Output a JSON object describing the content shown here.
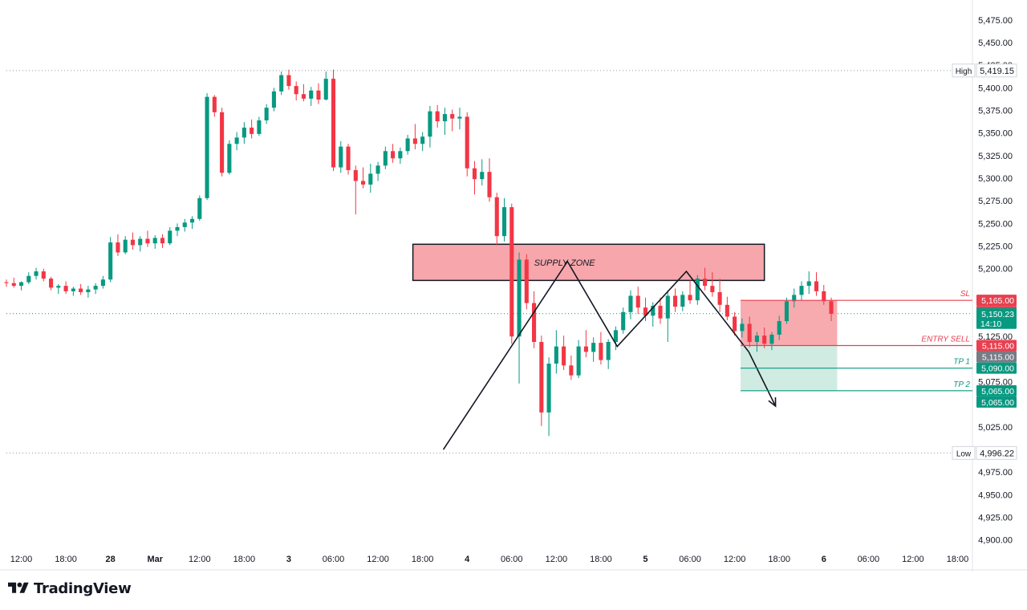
{
  "chart_data": {
    "type": "candlestick",
    "instrument_timeframe_hours": 1,
    "y_axis": {
      "ticks": [
        "5,475.00",
        "5,450.00",
        "5,425.00",
        "5,400.00",
        "5,375.00",
        "5,350.00",
        "5,325.00",
        "5,300.00",
        "5,275.00",
        "5,250.00",
        "5,225.00",
        "5,200.00",
        "5,125.00",
        "5,075.00",
        "5,025.00",
        "4,975.00",
        "4,950.00",
        "4,925.00",
        "4,900.00"
      ],
      "tick_values": [
        5475,
        5450,
        5425,
        5400,
        5375,
        5350,
        5325,
        5300,
        5275,
        5250,
        5225,
        5200,
        5125,
        5075,
        5025,
        4975,
        4950,
        4925,
        4900
      ],
      "ylim": [
        4890,
        5490
      ]
    },
    "x_axis": {
      "ticks": [
        "12:00",
        "18:00",
        "28",
        "Mar",
        "12:00",
        "18:00",
        "3",
        "06:00",
        "12:00",
        "18:00",
        "4",
        "06:00",
        "12:00",
        "18:00",
        "5",
        "06:00",
        "12:00",
        "18:00",
        "6",
        "06:00",
        "12:00",
        "18:00"
      ],
      "tick_hours": [
        0,
        6,
        12,
        18,
        24,
        30,
        36,
        42,
        48,
        54,
        60,
        66,
        72,
        78,
        84,
        90,
        96,
        102,
        108,
        114,
        120,
        126
      ],
      "bold_ticks": [
        2,
        3,
        6,
        10,
        14,
        18
      ],
      "xlim": [
        -2,
        128
      ]
    },
    "candles_start_hour": -2,
    "candles": [
      [
        5185,
        5188,
        5180,
        5184
      ],
      [
        5184,
        5190,
        5179,
        5181
      ],
      [
        5181,
        5186,
        5176,
        5185
      ],
      [
        5185,
        5196,
        5183,
        5192
      ],
      [
        5192,
        5201,
        5188,
        5197
      ],
      [
        5197,
        5200,
        5186,
        5189
      ],
      [
        5189,
        5191,
        5176,
        5179
      ],
      [
        5179,
        5183,
        5172,
        5181
      ],
      [
        5181,
        5186,
        5172,
        5175
      ],
      [
        5175,
        5180,
        5170,
        5178
      ],
      [
        5178,
        5183,
        5171,
        5174
      ],
      [
        5174,
        5181,
        5168,
        5177
      ],
      [
        5177,
        5184,
        5172,
        5181
      ],
      [
        5181,
        5192,
        5178,
        5188
      ],
      [
        5188,
        5235,
        5185,
        5229
      ],
      [
        5229,
        5238,
        5214,
        5218
      ],
      [
        5218,
        5236,
        5216,
        5232
      ],
      [
        5232,
        5240,
        5221,
        5226
      ],
      [
        5226,
        5236,
        5219,
        5233
      ],
      [
        5233,
        5242,
        5224,
        5228
      ],
      [
        5228,
        5237,
        5222,
        5234
      ],
      [
        5234,
        5238,
        5223,
        5228
      ],
      [
        5228,
        5246,
        5226,
        5242
      ],
      [
        5242,
        5250,
        5236,
        5246
      ],
      [
        5246,
        5255,
        5241,
        5251
      ],
      [
        5251,
        5258,
        5244,
        5255
      ],
      [
        5255,
        5281,
        5253,
        5278
      ],
      [
        5278,
        5394,
        5276,
        5390
      ],
      [
        5390,
        5392,
        5368,
        5373
      ],
      [
        5373,
        5378,
        5302,
        5306
      ],
      [
        5306,
        5342,
        5304,
        5338
      ],
      [
        5338,
        5351,
        5331,
        5345
      ],
      [
        5345,
        5362,
        5338,
        5356
      ],
      [
        5356,
        5365,
        5344,
        5349
      ],
      [
        5349,
        5368,
        5347,
        5364
      ],
      [
        5364,
        5382,
        5360,
        5378
      ],
      [
        5378,
        5400,
        5374,
        5396
      ],
      [
        5396,
        5418,
        5392,
        5414
      ],
      [
        5414,
        5420,
        5398,
        5402
      ],
      [
        5402,
        5407,
        5386,
        5393
      ],
      [
        5393,
        5404,
        5385,
        5388
      ],
      [
        5388,
        5401,
        5380,
        5397
      ],
      [
        5397,
        5405,
        5382,
        5387
      ],
      [
        5387,
        5418,
        5386,
        5410
      ],
      [
        5410,
        5420,
        5308,
        5312
      ],
      [
        5312,
        5341,
        5306,
        5335
      ],
      [
        5335,
        5338,
        5304,
        5309
      ],
      [
        5309,
        5314,
        5260,
        5297
      ],
      [
        5297,
        5312,
        5289,
        5293
      ],
      [
        5293,
        5316,
        5284,
        5305
      ],
      [
        5305,
        5318,
        5297,
        5314
      ],
      [
        5314,
        5335,
        5310,
        5330
      ],
      [
        5330,
        5338,
        5317,
        5322
      ],
      [
        5322,
        5334,
        5316,
        5330
      ],
      [
        5330,
        5348,
        5326,
        5344
      ],
      [
        5344,
        5360,
        5332,
        5338
      ],
      [
        5338,
        5351,
        5330,
        5346
      ],
      [
        5346,
        5380,
        5334,
        5374
      ],
      [
        5374,
        5381,
        5356,
        5363
      ],
      [
        5363,
        5378,
        5348,
        5371
      ],
      [
        5371,
        5376,
        5352,
        5366
      ],
      [
        5366,
        5378,
        5354,
        5368
      ],
      [
        5368,
        5373,
        5302,
        5311
      ],
      [
        5311,
        5319,
        5282,
        5299
      ],
      [
        5299,
        5321,
        5292,
        5307
      ],
      [
        5307,
        5322,
        5274,
        5279
      ],
      [
        5279,
        5284,
        5226,
        5236
      ],
      [
        5236,
        5278,
        5230,
        5268
      ],
      [
        5268,
        5272,
        5117,
        5125
      ],
      [
        5125,
        5218,
        5073,
        5210
      ],
      [
        5210,
        5216,
        5155,
        5162
      ],
      [
        5162,
        5175,
        5112,
        5119
      ],
      [
        5119,
        5126,
        5026,
        5041
      ],
      [
        5041,
        5102,
        5015,
        5095
      ],
      [
        5095,
        5132,
        5084,
        5114
      ],
      [
        5114,
        5126,
        5088,
        5093
      ],
      [
        5093,
        5104,
        5077,
        5082
      ],
      [
        5082,
        5121,
        5079,
        5114
      ],
      [
        5114,
        5132,
        5102,
        5108
      ],
      [
        5108,
        5124,
        5097,
        5118
      ],
      [
        5118,
        5130,
        5094,
        5099
      ],
      [
        5099,
        5122,
        5089,
        5119
      ],
      [
        5119,
        5136,
        5110,
        5132
      ],
      [
        5132,
        5157,
        5128,
        5152
      ],
      [
        5152,
        5176,
        5144,
        5170
      ],
      [
        5170,
        5180,
        5150,
        5157
      ],
      [
        5157,
        5168,
        5142,
        5148
      ],
      [
        5148,
        5163,
        5136,
        5159
      ],
      [
        5159,
        5168,
        5139,
        5145
      ],
      [
        5145,
        5176,
        5119,
        5170
      ],
      [
        5170,
        5178,
        5152,
        5158
      ],
      [
        5158,
        5175,
        5153,
        5171
      ],
      [
        5171,
        5187,
        5161,
        5165
      ],
      [
        5165,
        5193,
        5160,
        5189
      ],
      [
        5189,
        5201,
        5176,
        5181
      ],
      [
        5181,
        5196,
        5169,
        5174
      ],
      [
        5174,
        5189,
        5152,
        5160
      ],
      [
        5160,
        5169,
        5143,
        5147
      ],
      [
        5147,
        5152,
        5126,
        5131
      ],
      [
        5131,
        5145,
        5124,
        5139
      ],
      [
        5139,
        5147,
        5113,
        5119
      ],
      [
        5119,
        5130,
        5108,
        5126
      ],
      [
        5126,
        5135,
        5112,
        5117
      ],
      [
        5117,
        5130,
        5110,
        5127
      ],
      [
        5127,
        5148,
        5121,
        5142
      ],
      [
        5142,
        5168,
        5139,
        5164
      ],
      [
        5164,
        5178,
        5157,
        5171
      ],
      [
        5171,
        5186,
        5165,
        5181
      ],
      [
        5181,
        5197,
        5172,
        5186
      ],
      [
        5186,
        5196,
        5170,
        5175
      ],
      [
        5175,
        5182,
        5160,
        5164
      ],
      [
        5164,
        5168,
        5142,
        5150
      ]
    ],
    "price_lines": [
      {
        "value": 5419.15,
        "label": "High",
        "price": "5,419.15",
        "style": "dotted"
      },
      {
        "value": 4996.22,
        "label": "Low",
        "price": "4,996.22",
        "style": "dotted"
      },
      {
        "value": 5150.23,
        "style": "dotted",
        "color": "#089981"
      }
    ],
    "annotations": {
      "supply_zone": {
        "label": "SUPPLY ZONE",
        "from_hour": 52.7,
        "to_hour": 100,
        "top": 5227,
        "bottom": 5187,
        "fill": "#f7a6ab"
      },
      "zigzag": [
        [
          56.8,
          5000
        ],
        [
          73.5,
          5208
        ],
        [
          80.2,
          5114
        ],
        [
          89.5,
          5197
        ],
        [
          97.9,
          5108
        ]
      ],
      "zigzag_start_note": "lines pass through these price/time anchors",
      "arrow_end": [
        101.5,
        5048
      ],
      "position": {
        "from_hour": 96.8,
        "to_hour": 109.8,
        "stop": 5165,
        "entry": 5115,
        "target": 5065,
        "loss_fill": "#f7a6ab",
        "profit_fill": "#cdeae0"
      },
      "levels": [
        {
          "label": "SL",
          "value": 5165,
          "price": "5,165.00",
          "color": "#e84050"
        },
        {
          "label": "ENTRY SELL",
          "value": 5115,
          "price": "5,115.00",
          "color": "#e84050"
        },
        {
          "label": "TP 1",
          "value": 5090,
          "price": "5,090.00",
          "color": "#089981"
        },
        {
          "label": "TP 2",
          "value": 5065,
          "price": "5,065.00",
          "color": "#089981"
        }
      ]
    },
    "axis_badges": [
      {
        "price": "5,165.00",
        "value": 5165,
        "bg": "#e84050"
      },
      {
        "price": "5,165.00",
        "value": 5165,
        "bg": "#e84050",
        "stack": 1
      },
      {
        "price": "5,150.23",
        "sub": "14:10",
        "value": 5150.23,
        "bg": "#089981"
      },
      {
        "price": "5,115.00",
        "value": 5115,
        "bg": "#e84050"
      },
      {
        "price": "5,115.00",
        "value": 5115,
        "bg": "#787b86",
        "stack": 1
      },
      {
        "price": "5,090.00",
        "value": 5090,
        "bg": "#089981"
      },
      {
        "price": "5,065.00",
        "value": 5065,
        "bg": "#089981"
      },
      {
        "price": "5,065.00",
        "value": 5065,
        "bg": "#089981",
        "stack": 1
      }
    ],
    "colors": {
      "up": "#089981",
      "down": "#f23645",
      "grid": "#e0e3eb",
      "axis_text": "#131722"
    }
  },
  "branding": {
    "name": "TradingView"
  }
}
